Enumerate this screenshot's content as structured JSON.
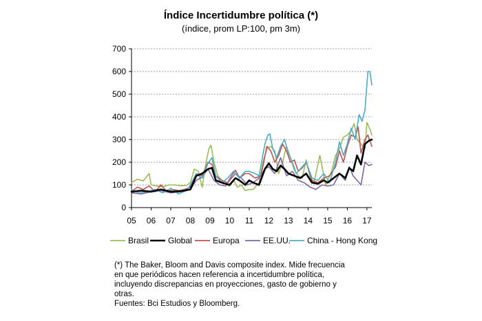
{
  "chart_data": {
    "type": "line",
    "title": "Índice Incertidumbre política (*)",
    "subtitle": "(índice, prom LP:100, pm 3m)",
    "yticks": [
      "0",
      "100",
      "200",
      "300",
      "400",
      "500",
      "600",
      "700"
    ],
    "ylim": [
      0,
      700
    ],
    "xticks": [
      "05",
      "06",
      "07",
      "08",
      "09",
      "10",
      "11",
      "12",
      "13",
      "14",
      "15",
      "16",
      "17"
    ],
    "xlim": [
      2005.0,
      2017.25
    ],
    "grid": true,
    "legend_position": "bottom",
    "series": [
      {
        "name": "Brasil",
        "color": "#9bbb59",
        "width": 1.6,
        "points": [
          [
            2005.0,
            110
          ],
          [
            2005.3,
            125
          ],
          [
            2005.6,
            118
          ],
          [
            2005.9,
            150
          ],
          [
            2006.0,
            100
          ],
          [
            2006.3,
            95
          ],
          [
            2006.6,
            92
          ],
          [
            2006.9,
            100
          ],
          [
            2007.2,
            100
          ],
          [
            2007.5,
            96
          ],
          [
            2007.8,
            98
          ],
          [
            2008.0,
            110
          ],
          [
            2008.2,
            170
          ],
          [
            2008.4,
            160
          ],
          [
            2008.6,
            90
          ],
          [
            2008.8,
            200
          ],
          [
            2008.95,
            260
          ],
          [
            2009.05,
            275
          ],
          [
            2009.2,
            200
          ],
          [
            2009.4,
            140
          ],
          [
            2009.7,
            110
          ],
          [
            2009.9,
            100
          ],
          [
            2010.0,
            95
          ],
          [
            2010.2,
            120
          ],
          [
            2010.4,
            90
          ],
          [
            2010.6,
            100
          ],
          [
            2010.8,
            75
          ],
          [
            2011.0,
            80
          ],
          [
            2011.2,
            80
          ],
          [
            2011.5,
            110
          ],
          [
            2011.7,
            200
          ],
          [
            2011.9,
            260
          ],
          [
            2012.1,
            270
          ],
          [
            2012.3,
            250
          ],
          [
            2012.5,
            150
          ],
          [
            2012.7,
            200
          ],
          [
            2012.9,
            270
          ],
          [
            2013.1,
            220
          ],
          [
            2013.3,
            165
          ],
          [
            2013.5,
            140
          ],
          [
            2013.7,
            130
          ],
          [
            2013.9,
            210
          ],
          [
            2014.1,
            135
          ],
          [
            2014.3,
            110
          ],
          [
            2014.6,
            230
          ],
          [
            2014.9,
            100
          ],
          [
            2015.2,
            160
          ],
          [
            2015.4,
            230
          ],
          [
            2015.6,
            260
          ],
          [
            2015.8,
            310
          ],
          [
            2016.0,
            320
          ],
          [
            2016.2,
            340
          ],
          [
            2016.35,
            370
          ],
          [
            2016.5,
            300
          ],
          [
            2016.7,
            280
          ],
          [
            2016.9,
            260
          ],
          [
            2017.0,
            375
          ],
          [
            2017.15,
            345
          ],
          [
            2017.25,
            320
          ]
        ]
      },
      {
        "name": "Global",
        "color": "#000000",
        "width": 2.6,
        "points": [
          [
            2005.0,
            70
          ],
          [
            2005.5,
            75
          ],
          [
            2006.0,
            70
          ],
          [
            2006.5,
            80
          ],
          [
            2007.0,
            70
          ],
          [
            2007.5,
            72
          ],
          [
            2008.0,
            80
          ],
          [
            2008.3,
            140
          ],
          [
            2008.6,
            150
          ],
          [
            2008.9,
            170
          ],
          [
            2009.1,
            175
          ],
          [
            2009.3,
            120
          ],
          [
            2009.6,
            110
          ],
          [
            2010.0,
            100
          ],
          [
            2010.3,
            130
          ],
          [
            2010.5,
            120
          ],
          [
            2010.8,
            100
          ],
          [
            2011.0,
            120
          ],
          [
            2011.2,
            110
          ],
          [
            2011.5,
            100
          ],
          [
            2011.8,
            170
          ],
          [
            2012.0,
            195
          ],
          [
            2012.2,
            170
          ],
          [
            2012.4,
            160
          ],
          [
            2012.6,
            185
          ],
          [
            2012.8,
            170
          ],
          [
            2013.0,
            150
          ],
          [
            2013.3,
            140
          ],
          [
            2013.6,
            130
          ],
          [
            2013.9,
            150
          ],
          [
            2014.2,
            110
          ],
          [
            2014.5,
            105
          ],
          [
            2014.8,
            120
          ],
          [
            2015.0,
            110
          ],
          [
            2015.3,
            130
          ],
          [
            2015.6,
            150
          ],
          [
            2015.9,
            130
          ],
          [
            2016.1,
            175
          ],
          [
            2016.3,
            160
          ],
          [
            2016.5,
            230
          ],
          [
            2016.7,
            190
          ],
          [
            2016.9,
            280
          ],
          [
            2017.1,
            295
          ],
          [
            2017.25,
            300
          ]
        ]
      },
      {
        "name": "Europa",
        "color": "#c0504d",
        "width": 1.6,
        "points": [
          [
            2005.0,
            70
          ],
          [
            2005.3,
            90
          ],
          [
            2005.6,
            80
          ],
          [
            2005.9,
            95
          ],
          [
            2006.2,
            70
          ],
          [
            2006.5,
            100
          ],
          [
            2006.8,
            70
          ],
          [
            2007.1,
            80
          ],
          [
            2007.4,
            75
          ],
          [
            2007.7,
            80
          ],
          [
            2008.0,
            90
          ],
          [
            2008.3,
            150
          ],
          [
            2008.6,
            140
          ],
          [
            2008.9,
            200
          ],
          [
            2009.1,
            190
          ],
          [
            2009.3,
            140
          ],
          [
            2009.6,
            120
          ],
          [
            2009.9,
            110
          ],
          [
            2010.1,
            140
          ],
          [
            2010.3,
            165
          ],
          [
            2010.5,
            130
          ],
          [
            2010.8,
            150
          ],
          [
            2011.0,
            150
          ],
          [
            2011.3,
            130
          ],
          [
            2011.6,
            140
          ],
          [
            2011.9,
            270
          ],
          [
            2012.1,
            250
          ],
          [
            2012.3,
            200
          ],
          [
            2012.5,
            230
          ],
          [
            2012.7,
            280
          ],
          [
            2012.9,
            250
          ],
          [
            2013.1,
            200
          ],
          [
            2013.3,
            210
          ],
          [
            2013.5,
            160
          ],
          [
            2013.7,
            175
          ],
          [
            2013.9,
            200
          ],
          [
            2014.2,
            120
          ],
          [
            2014.5,
            110
          ],
          [
            2014.8,
            130
          ],
          [
            2015.1,
            140
          ],
          [
            2015.4,
            180
          ],
          [
            2015.6,
            250
          ],
          [
            2015.8,
            200
          ],
          [
            2016.0,
            270
          ],
          [
            2016.2,
            320
          ],
          [
            2016.4,
            310
          ],
          [
            2016.55,
            355
          ],
          [
            2016.7,
            240
          ],
          [
            2016.9,
            300
          ],
          [
            2017.05,
            320
          ],
          [
            2017.25,
            270
          ]
        ]
      },
      {
        "name": "EE.UU.",
        "color": "#8064a2",
        "width": 1.6,
        "points": [
          [
            2005.0,
            65
          ],
          [
            2005.5,
            60
          ],
          [
            2006.0,
            70
          ],
          [
            2006.5,
            75
          ],
          [
            2007.0,
            65
          ],
          [
            2007.5,
            70
          ],
          [
            2008.0,
            80
          ],
          [
            2008.3,
            120
          ],
          [
            2008.6,
            135
          ],
          [
            2008.9,
            170
          ],
          [
            2009.2,
            120
          ],
          [
            2009.5,
            100
          ],
          [
            2009.8,
            95
          ],
          [
            2010.0,
            120
          ],
          [
            2010.3,
            150
          ],
          [
            2010.6,
            130
          ],
          [
            2010.9,
            100
          ],
          [
            2011.2,
            110
          ],
          [
            2011.5,
            130
          ],
          [
            2011.8,
            170
          ],
          [
            2012.0,
            180
          ],
          [
            2012.3,
            150
          ],
          [
            2012.6,
            220
          ],
          [
            2012.9,
            140
          ],
          [
            2013.2,
            160
          ],
          [
            2013.5,
            120
          ],
          [
            2013.8,
            110
          ],
          [
            2014.1,
            90
          ],
          [
            2014.4,
            80
          ],
          [
            2014.7,
            100
          ],
          [
            2015.0,
            95
          ],
          [
            2015.3,
            100
          ],
          [
            2015.6,
            150
          ],
          [
            2015.9,
            120
          ],
          [
            2016.1,
            180
          ],
          [
            2016.3,
            140
          ],
          [
            2016.5,
            120
          ],
          [
            2016.7,
            100
          ],
          [
            2016.9,
            200
          ],
          [
            2017.1,
            185
          ],
          [
            2017.25,
            190
          ]
        ]
      },
      {
        "name": "China - Hong Kong",
        "color": "#4bacc6",
        "width": 1.6,
        "points": [
          [
            2005.0,
            80
          ],
          [
            2005.4,
            65
          ],
          [
            2005.8,
            70
          ],
          [
            2006.2,
            80
          ],
          [
            2006.6,
            65
          ],
          [
            2007.0,
            85
          ],
          [
            2007.4,
            60
          ],
          [
            2007.8,
            75
          ],
          [
            2008.0,
            100
          ],
          [
            2008.3,
            150
          ],
          [
            2008.6,
            130
          ],
          [
            2008.9,
            195
          ],
          [
            2009.1,
            220
          ],
          [
            2009.3,
            140
          ],
          [
            2009.6,
            110
          ],
          [
            2009.9,
            130
          ],
          [
            2010.2,
            160
          ],
          [
            2010.5,
            130
          ],
          [
            2010.8,
            160
          ],
          [
            2011.0,
            160
          ],
          [
            2011.3,
            150
          ],
          [
            2011.5,
            140
          ],
          [
            2011.8,
            280
          ],
          [
            2011.95,
            320
          ],
          [
            2012.05,
            325
          ],
          [
            2012.2,
            260
          ],
          [
            2012.4,
            220
          ],
          [
            2012.6,
            270
          ],
          [
            2012.8,
            300
          ],
          [
            2013.0,
            240
          ],
          [
            2013.2,
            200
          ],
          [
            2013.4,
            150
          ],
          [
            2013.6,
            170
          ],
          [
            2013.9,
            200
          ],
          [
            2014.2,
            130
          ],
          [
            2014.5,
            120
          ],
          [
            2014.8,
            150
          ],
          [
            2015.1,
            110
          ],
          [
            2015.4,
            200
          ],
          [
            2015.6,
            290
          ],
          [
            2015.8,
            230
          ],
          [
            2016.0,
            280
          ],
          [
            2016.2,
            350
          ],
          [
            2016.4,
            300
          ],
          [
            2016.6,
            410
          ],
          [
            2016.75,
            380
          ],
          [
            2016.9,
            430
          ],
          [
            2017.05,
            600
          ],
          [
            2017.15,
            600
          ],
          [
            2017.25,
            540
          ]
        ]
      }
    ]
  },
  "note_lines": [
    "(*) The Baker, Bloom  and  Davis composite index. Mide frecuencia",
    "en que periódicos hacen referencia a incertidumbre política,",
    "incluyendo discrepancias en proyecciones, gasto de gobierno y",
    "otras.",
    "Fuentes: Bci Estudios y Bloomberg."
  ]
}
